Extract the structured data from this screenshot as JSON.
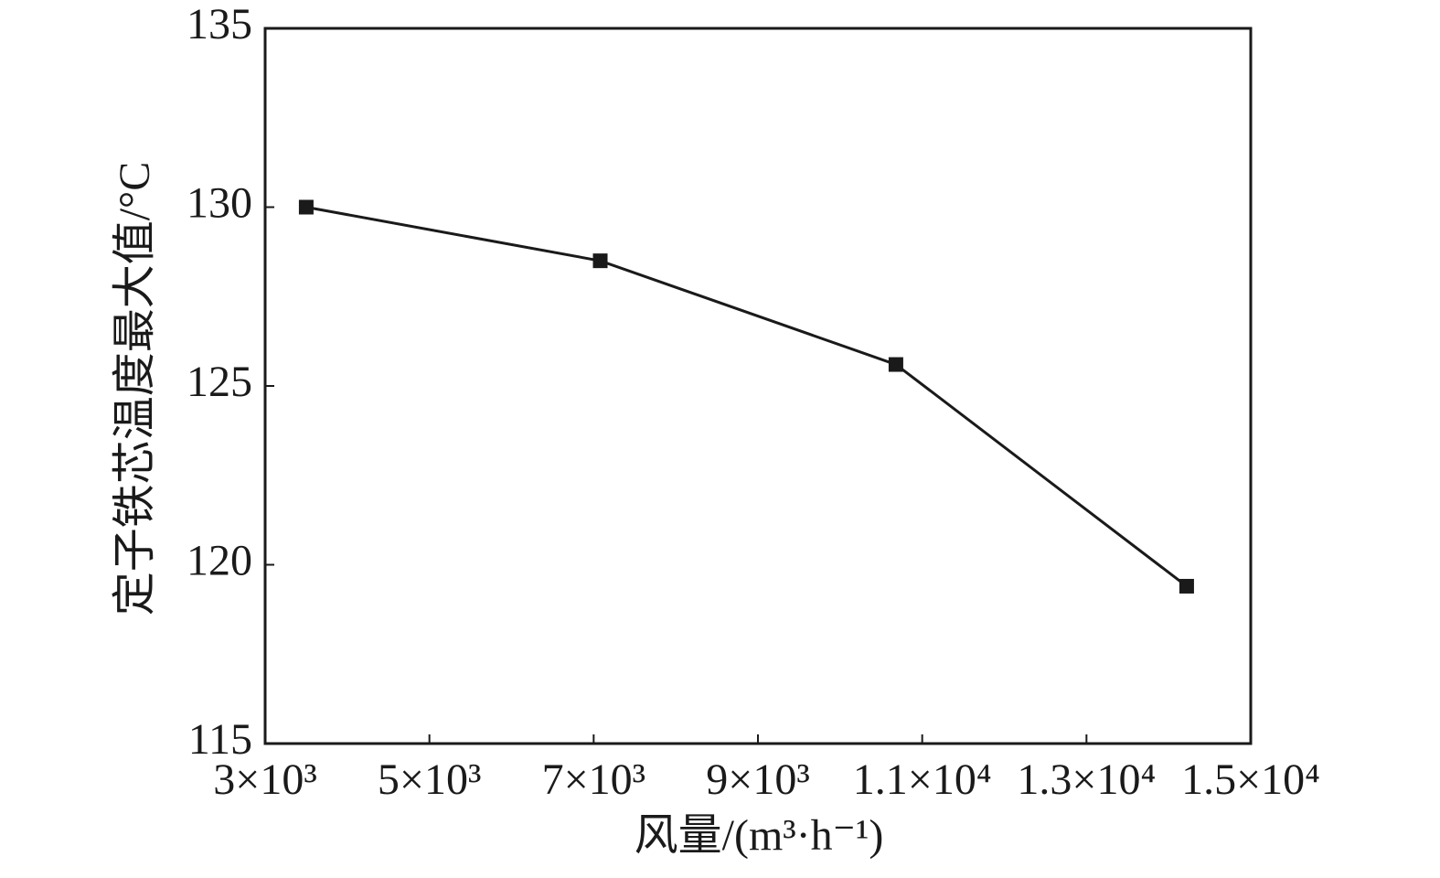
{
  "chart_data": {
    "type": "line",
    "x_label": "风量/(m³·h⁻¹)",
    "y_label": "定子铁芯温度最大值/°C",
    "x": [
      3500,
      7080,
      10680,
      14220
    ],
    "series": [
      {
        "color": "#1a1a1a",
        "values": [
          130,
          128.5,
          125.6,
          119.4
        ]
      }
    ],
    "xlim": [
      3000,
      15000
    ],
    "xticks": [
      {
        "value": 3000,
        "label": "3×10³"
      },
      {
        "value": 5000,
        "label": "5×10³"
      },
      {
        "value": 7000,
        "label": "7×10³"
      },
      {
        "value": 9000,
        "label": "9×10³"
      },
      {
        "value": 11000,
        "label": "1.1×10⁴"
      },
      {
        "value": 13000,
        "label": "1.3×10⁴"
      },
      {
        "value": 15000,
        "label": "1.5×10⁴"
      }
    ],
    "ylim": [
      115,
      135
    ],
    "yticks": [
      115,
      120,
      125,
      130,
      135
    ]
  }
}
